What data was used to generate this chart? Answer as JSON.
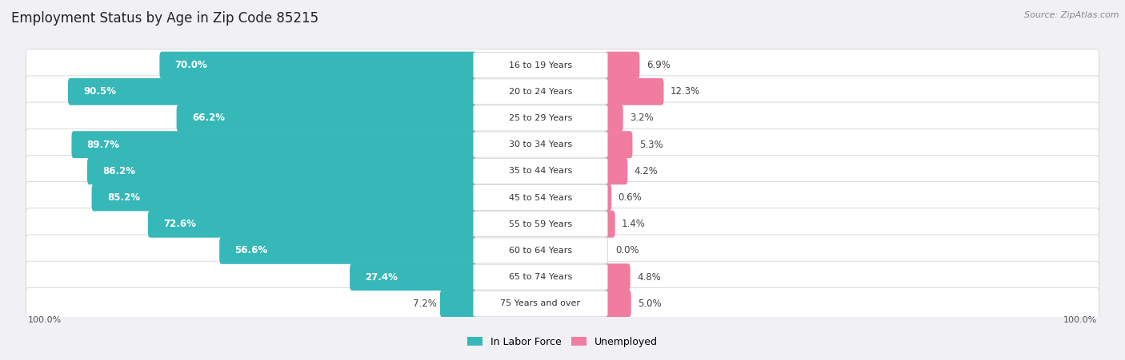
{
  "title": "Employment Status by Age in Zip Code 85215",
  "source": "Source: ZipAtlas.com",
  "age_groups": [
    "16 to 19 Years",
    "20 to 24 Years",
    "25 to 29 Years",
    "30 to 34 Years",
    "35 to 44 Years",
    "45 to 54 Years",
    "55 to 59 Years",
    "60 to 64 Years",
    "65 to 74 Years",
    "75 Years and over"
  ],
  "labor_force": [
    70.0,
    90.5,
    66.2,
    89.7,
    86.2,
    85.2,
    72.6,
    56.6,
    27.4,
    7.2
  ],
  "unemployed": [
    6.9,
    12.3,
    3.2,
    5.3,
    4.2,
    0.6,
    1.4,
    0.0,
    4.8,
    5.0
  ],
  "labor_color": "#36b8b8",
  "unemployed_color": "#f07ca0",
  "row_bg_odd": "#f0f0f5",
  "row_bg_even": "#e8e8ef",
  "row_inner_bg": "#f8f8fc",
  "title_fontsize": 12,
  "label_fontsize": 8.5,
  "source_fontsize": 8,
  "legend_fontsize": 9,
  "axis_label_fontsize": 8,
  "center_label_color": "#333333",
  "lf_label_inside_color": "#ffffff",
  "lf_label_outside_color": "#444444",
  "unemp_label_color": "#444444"
}
